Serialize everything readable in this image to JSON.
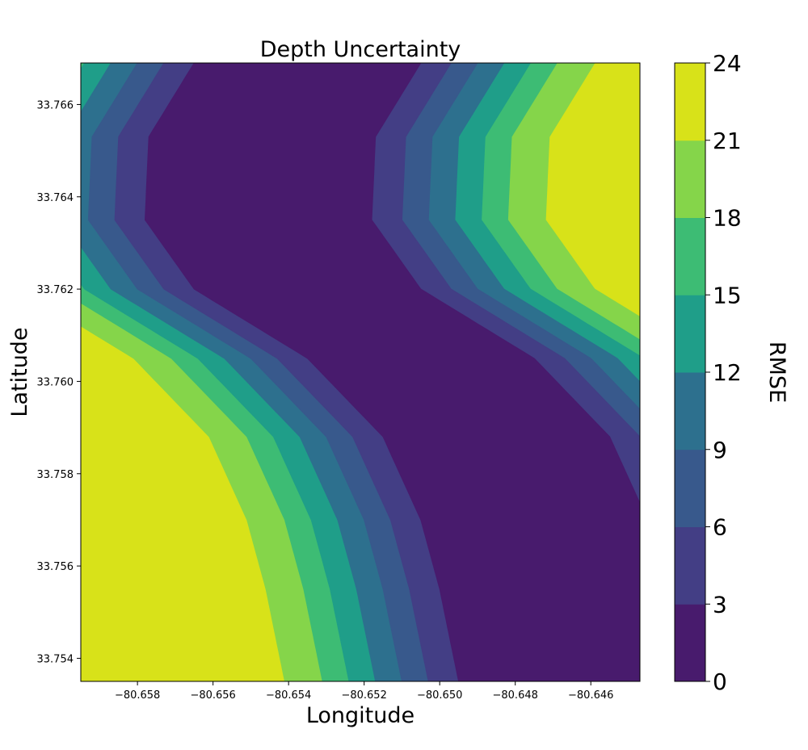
{
  "chart_data": {
    "type": "filled-contour",
    "title": "Depth Uncertainty",
    "xlabel": "Longitude",
    "ylabel": "Latitude",
    "xlim": [
      -80.6595,
      -80.6447
    ],
    "ylim": [
      33.7535,
      33.7669
    ],
    "x_ticks": [
      -80.658,
      -80.656,
      -80.654,
      -80.652,
      -80.65,
      -80.648,
      -80.646
    ],
    "x_tick_labels": [
      "−80.658",
      "−80.656",
      "−80.654",
      "−80.652",
      "−80.650",
      "−80.648",
      "−80.646"
    ],
    "y_ticks": [
      33.754,
      33.756,
      33.758,
      33.76,
      33.762,
      33.764,
      33.766
    ],
    "y_tick_labels": [
      "33.754",
      "33.756",
      "33.758",
      "33.760",
      "33.762",
      "33.764",
      "33.766"
    ],
    "colorbar": {
      "label": "RMSE",
      "levels": [
        0,
        3,
        6,
        9,
        12,
        15,
        18,
        21,
        24
      ],
      "tick_labels": [
        "0",
        "3",
        "6",
        "9",
        "12",
        "15",
        "18",
        "21",
        "24"
      ],
      "colors": [
        "#481b6d",
        "#433e85",
        "#38598c",
        "#2d708e",
        "#1f9e89",
        "#3dbc74",
        "#85d54a",
        "#d8e219"
      ]
    },
    "channel_centerline": [
      [
        -80.6535,
        33.7669
      ],
      [
        -80.6547,
        33.7653
      ],
      [
        -80.6548,
        33.7635
      ],
      [
        -80.6535,
        33.762
      ],
      [
        -80.6505,
        33.7605
      ],
      [
        -80.6485,
        33.7588
      ],
      [
        -80.6475,
        33.757
      ],
      [
        -80.647,
        33.7555
      ],
      [
        -80.6465,
        33.7535
      ]
    ],
    "band_half_widths_lon": [
      0.003,
      0.0038,
      0.0045,
      0.0052,
      0.0059,
      0.0066,
      0.0076
    ]
  }
}
